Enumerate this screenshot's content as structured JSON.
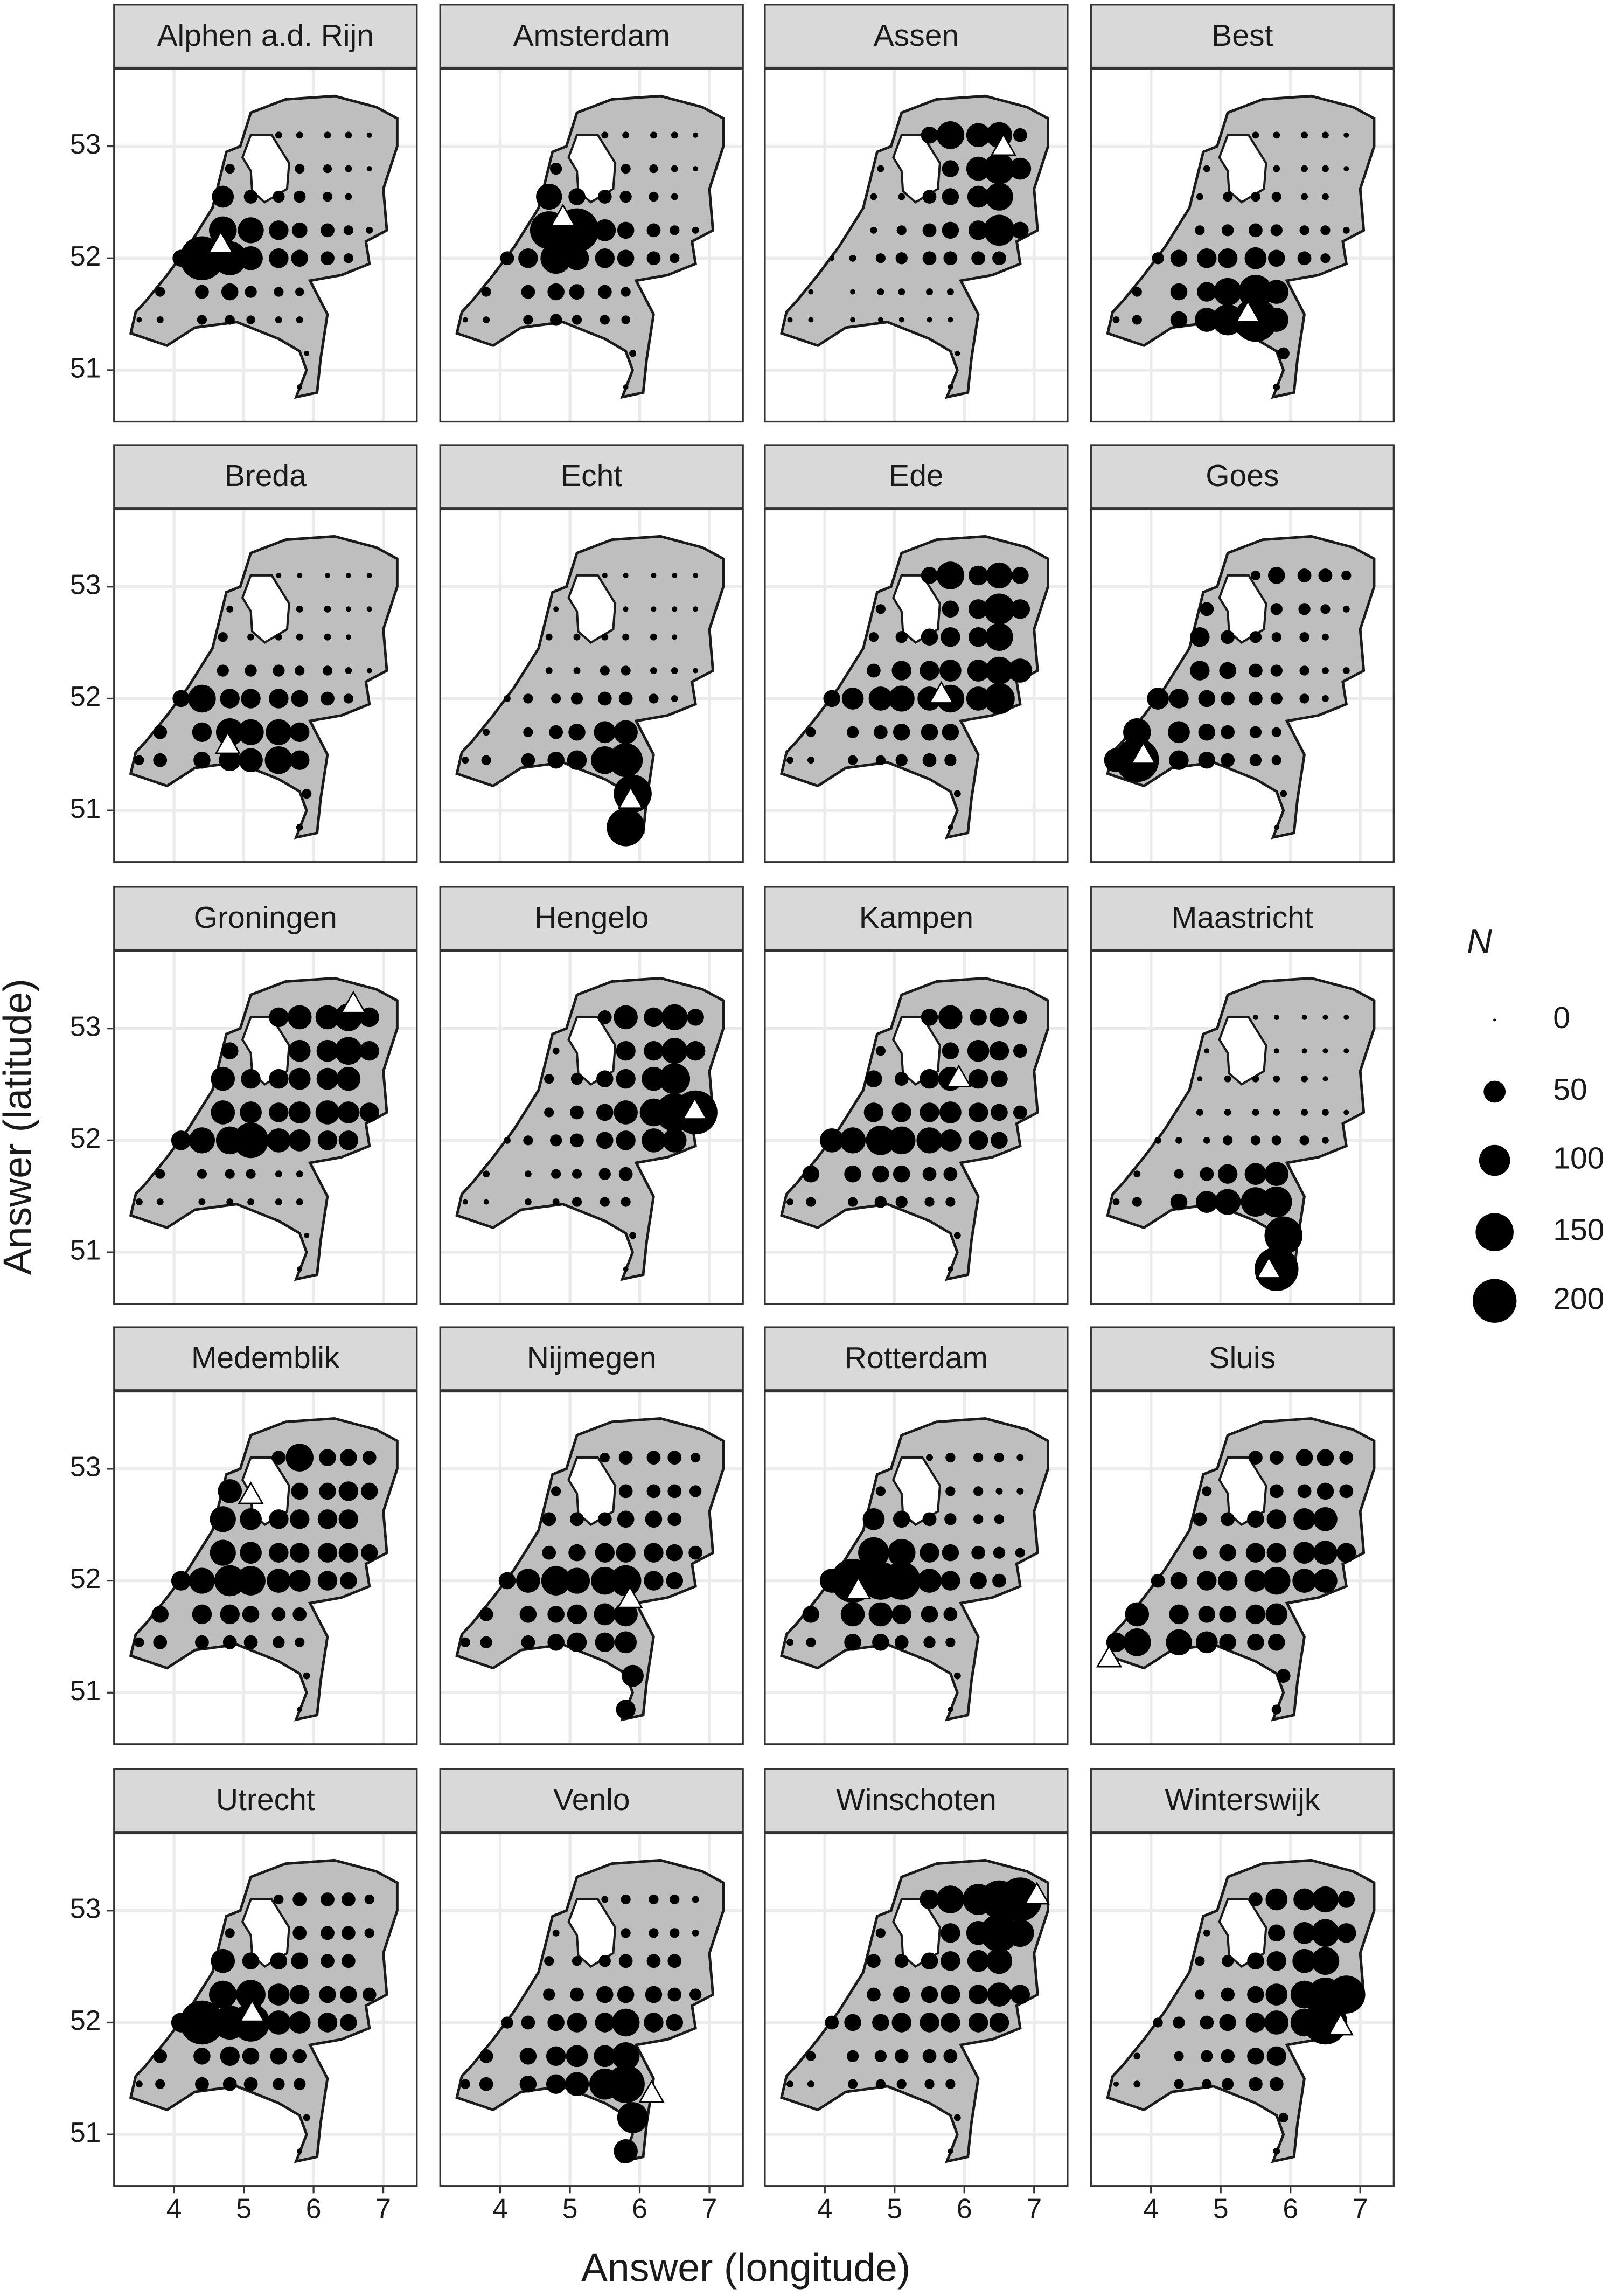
{
  "chart_data": {
    "type": "scatter",
    "x_label": "Answer (longitude)",
    "y_label": "Answer (latitude)",
    "size_legend_title": "N",
    "size_legend": [
      0,
      50,
      100,
      150,
      200
    ],
    "xlim": [
      3.14,
      7.48
    ],
    "ylim": [
      50.54,
      53.69
    ],
    "xticks": [
      4,
      5,
      6,
      7
    ],
    "yticks": [
      51,
      52,
      53
    ],
    "grid": true,
    "color": "#000000",
    "points": {
      "lon": [
        5.5,
        5.8,
        6.2,
        6.5,
        6.8,
        4.8,
        5.8,
        6.2,
        6.5,
        6.8,
        4.7,
        5.1,
        5.5,
        5.8,
        6.2,
        6.5,
        4.7,
        5.1,
        5.5,
        5.8,
        6.2,
        6.5,
        6.8,
        4.1,
        4.4,
        4.8,
        5.1,
        5.5,
        5.8,
        6.2,
        6.5,
        3.8,
        4.4,
        4.8,
        5.1,
        5.5,
        5.8,
        3.5,
        3.8,
        4.4,
        4.8,
        5.1,
        5.5,
        5.8,
        5.9,
        5.8
      ],
      "lat": [
        53.1,
        53.1,
        53.1,
        53.1,
        53.1,
        52.8,
        52.8,
        52.8,
        52.8,
        52.8,
        52.55,
        52.55,
        52.55,
        52.55,
        52.55,
        52.55,
        52.25,
        52.25,
        52.25,
        52.25,
        52.25,
        52.25,
        52.25,
        52.0,
        52.0,
        52.0,
        52.0,
        52.0,
        52.0,
        52.0,
        52.0,
        51.7,
        51.7,
        51.7,
        51.7,
        51.7,
        51.7,
        51.45,
        51.45,
        51.45,
        51.45,
        51.45,
        51.45,
        51.45,
        51.15,
        50.85
      ]
    },
    "panels": [
      {
        "title": "Alphen a.d. Rijn",
        "city_lon": 4.67,
        "city_lat": 52.13,
        "values": [
          5,
          5,
          5,
          5,
          3,
          10,
          10,
          8,
          5,
          3,
          50,
          20,
          15,
          15,
          10,
          5,
          80,
          70,
          40,
          25,
          20,
          10,
          5,
          30,
          200,
          120,
          60,
          40,
          30,
          20,
          10,
          10,
          20,
          30,
          15,
          10,
          8,
          3,
          5,
          10,
          10,
          8,
          5,
          5,
          3,
          3
        ]
      },
      {
        "title": "Amsterdam",
        "city_lon": 4.9,
        "city_lat": 52.37,
        "values": [
          5,
          5,
          5,
          5,
          3,
          15,
          10,
          8,
          5,
          3,
          70,
          30,
          20,
          15,
          10,
          5,
          150,
          200,
          50,
          30,
          20,
          10,
          5,
          20,
          40,
          100,
          60,
          40,
          30,
          20,
          10,
          10,
          20,
          30,
          25,
          20,
          10,
          3,
          5,
          10,
          15,
          10,
          10,
          8,
          5,
          3
        ]
      },
      {
        "title": "Assen",
        "city_lon": 6.56,
        "city_lat": 53.0,
        "values": [
          30,
          80,
          60,
          70,
          20,
          5,
          30,
          60,
          100,
          50,
          5,
          5,
          20,
          30,
          50,
          80,
          5,
          10,
          20,
          30,
          40,
          100,
          30,
          3,
          5,
          10,
          15,
          20,
          20,
          20,
          20,
          3,
          3,
          5,
          5,
          5,
          5,
          3,
          3,
          3,
          3,
          3,
          3,
          3,
          3,
          3
        ]
      },
      {
        "title": "Best",
        "city_lon": 5.39,
        "city_lat": 51.51,
        "values": [
          5,
          5,
          5,
          5,
          3,
          5,
          5,
          5,
          5,
          3,
          5,
          10,
          10,
          10,
          5,
          5,
          10,
          15,
          20,
          15,
          10,
          10,
          5,
          15,
          30,
          40,
          40,
          50,
          30,
          20,
          10,
          10,
          30,
          40,
          80,
          120,
          60,
          5,
          10,
          30,
          60,
          100,
          200,
          60,
          15,
          5
        ]
      },
      {
        "title": "Breda",
        "city_lon": 4.77,
        "city_lat": 51.59,
        "values": [
          3,
          3,
          3,
          3,
          3,
          5,
          5,
          5,
          3,
          3,
          10,
          5,
          5,
          5,
          5,
          3,
          15,
          15,
          15,
          10,
          10,
          5,
          3,
          30,
          80,
          40,
          40,
          40,
          30,
          20,
          10,
          20,
          40,
          80,
          70,
          70,
          40,
          10,
          20,
          30,
          50,
          60,
          80,
          40,
          10,
          5
        ]
      },
      {
        "title": "Echt",
        "city_lon": 5.87,
        "city_lat": 51.1,
        "values": [
          3,
          3,
          3,
          3,
          3,
          3,
          3,
          3,
          3,
          3,
          5,
          5,
          5,
          5,
          5,
          3,
          5,
          5,
          10,
          10,
          5,
          5,
          3,
          5,
          10,
          10,
          15,
          20,
          20,
          10,
          5,
          5,
          10,
          20,
          30,
          50,
          60,
          5,
          10,
          20,
          30,
          40,
          80,
          120,
          150,
          150
        ]
      },
      {
        "title": "Ede",
        "city_lon": 5.67,
        "city_lat": 52.04,
        "values": [
          30,
          80,
          40,
          70,
          30,
          10,
          30,
          40,
          100,
          40,
          10,
          15,
          30,
          40,
          40,
          80,
          20,
          40,
          40,
          50,
          50,
          80,
          60,
          30,
          50,
          60,
          70,
          60,
          80,
          60,
          100,
          10,
          15,
          20,
          30,
          30,
          30,
          5,
          5,
          10,
          10,
          15,
          20,
          15,
          5,
          3
        ]
      },
      {
        "title": "Goes",
        "city_lon": 3.89,
        "city_lat": 51.5,
        "values": [
          10,
          30,
          20,
          20,
          10,
          20,
          15,
          15,
          10,
          5,
          40,
          20,
          15,
          10,
          10,
          5,
          40,
          30,
          20,
          15,
          10,
          5,
          5,
          50,
          40,
          30,
          20,
          20,
          15,
          10,
          5,
          80,
          50,
          30,
          20,
          15,
          10,
          60,
          200,
          40,
          30,
          20,
          15,
          10,
          5,
          3
        ]
      },
      {
        "title": "Groningen",
        "city_lon": 6.57,
        "city_lat": 53.22,
        "values": [
          40,
          60,
          60,
          80,
          40,
          30,
          50,
          50,
          80,
          40,
          60,
          40,
          40,
          50,
          50,
          60,
          60,
          50,
          40,
          50,
          60,
          50,
          40,
          40,
          70,
          80,
          130,
          60,
          50,
          40,
          40,
          10,
          10,
          10,
          10,
          5,
          5,
          5,
          5,
          5,
          5,
          5,
          5,
          5,
          3,
          3
        ]
      },
      {
        "title": "Hengelo",
        "city_lon": 6.79,
        "city_lat": 52.27,
        "values": [
          20,
          60,
          40,
          70,
          30,
          5,
          40,
          40,
          70,
          40,
          10,
          15,
          30,
          40,
          60,
          100,
          10,
          20,
          30,
          60,
          80,
          150,
          200,
          5,
          10,
          15,
          20,
          30,
          40,
          60,
          60,
          5,
          5,
          10,
          10,
          15,
          20,
          3,
          3,
          5,
          5,
          10,
          10,
          10,
          5,
          3
        ]
      },
      {
        "title": "Kampen",
        "city_lon": 5.92,
        "city_lat": 52.56,
        "values": [
          30,
          60,
          30,
          40,
          20,
          10,
          30,
          50,
          40,
          20,
          30,
          20,
          40,
          60,
          40,
          30,
          40,
          40,
          40,
          50,
          40,
          30,
          20,
          60,
          70,
          90,
          80,
          70,
          50,
          40,
          30,
          30,
          30,
          30,
          30,
          20,
          20,
          5,
          10,
          10,
          15,
          15,
          10,
          10,
          5,
          3
        ]
      },
      {
        "title": "Maastricht",
        "city_lon": 5.69,
        "city_lat": 50.85,
        "values": [
          3,
          3,
          3,
          3,
          3,
          3,
          3,
          3,
          3,
          3,
          3,
          5,
          5,
          5,
          5,
          3,
          5,
          5,
          5,
          5,
          5,
          5,
          3,
          5,
          5,
          5,
          10,
          10,
          10,
          10,
          5,
          5,
          10,
          20,
          40,
          50,
          60,
          5,
          10,
          30,
          50,
          70,
          90,
          100,
          150,
          200
        ]
      },
      {
        "title": "Medemblik",
        "city_lon": 5.1,
        "city_lat": 52.77,
        "values": [
          20,
          80,
          30,
          30,
          20,
          60,
          30,
          30,
          40,
          30,
          70,
          50,
          40,
          40,
          40,
          40,
          70,
          50,
          40,
          40,
          40,
          40,
          30,
          40,
          70,
          100,
          90,
          60,
          50,
          40,
          30,
          30,
          40,
          40,
          30,
          20,
          20,
          10,
          20,
          20,
          20,
          20,
          15,
          10,
          5,
          3
        ]
      },
      {
        "title": "Nijmegen",
        "city_lon": 5.86,
        "city_lat": 51.84,
        "values": [
          10,
          20,
          20,
          20,
          10,
          10,
          20,
          20,
          20,
          15,
          20,
          20,
          20,
          30,
          30,
          20,
          20,
          30,
          40,
          40,
          40,
          30,
          20,
          30,
          60,
          90,
          70,
          80,
          100,
          40,
          30,
          20,
          30,
          30,
          40,
          50,
          60,
          10,
          15,
          20,
          30,
          40,
          40,
          50,
          50,
          40
        ]
      },
      {
        "title": "Rotterdam",
        "city_lon": 4.48,
        "city_lat": 51.92,
        "values": [
          5,
          10,
          10,
          10,
          5,
          10,
          10,
          10,
          5,
          5,
          50,
          30,
          20,
          15,
          10,
          10,
          100,
          80,
          40,
          30,
          20,
          15,
          10,
          60,
          200,
          150,
          150,
          60,
          40,
          30,
          20,
          30,
          60,
          60,
          40,
          30,
          20,
          5,
          10,
          30,
          30,
          20,
          15,
          10,
          5,
          3
        ]
      },
      {
        "title": "Sluis",
        "city_lon": 3.4,
        "city_lat": 51.31,
        "values": [
          20,
          20,
          30,
          30,
          20,
          10,
          20,
          20,
          30,
          20,
          20,
          20,
          30,
          40,
          50,
          60,
          20,
          30,
          40,
          40,
          50,
          60,
          40,
          20,
          30,
          40,
          40,
          50,
          80,
          60,
          60,
          60,
          40,
          30,
          30,
          40,
          50,
          40,
          80,
          70,
          50,
          30,
          30,
          30,
          20,
          10
        ]
      },
      {
        "title": "Utrecht",
        "city_lon": 5.12,
        "city_lat": 52.09,
        "values": [
          10,
          20,
          20,
          20,
          10,
          10,
          20,
          20,
          20,
          10,
          60,
          30,
          30,
          30,
          20,
          20,
          80,
          90,
          50,
          40,
          30,
          30,
          20,
          40,
          200,
          120,
          150,
          60,
          50,
          40,
          30,
          20,
          30,
          40,
          30,
          30,
          20,
          5,
          10,
          20,
          20,
          20,
          15,
          15,
          5,
          3
        ]
      },
      {
        "title": "Venlo",
        "city_lon": 6.17,
        "city_lat": 51.37,
        "values": [
          5,
          10,
          10,
          10,
          5,
          5,
          10,
          10,
          10,
          5,
          10,
          10,
          15,
          20,
          20,
          20,
          15,
          20,
          30,
          30,
          30,
          20,
          15,
          15,
          20,
          30,
          40,
          40,
          80,
          40,
          30,
          20,
          30,
          40,
          50,
          50,
          80,
          10,
          20,
          30,
          40,
          60,
          100,
          150,
          100,
          60
        ]
      },
      {
        "title": "Winschoten",
        "city_lon": 7.04,
        "city_lat": 53.14,
        "values": [
          40,
          80,
          100,
          150,
          200,
          10,
          40,
          60,
          150,
          80,
          20,
          20,
          30,
          40,
          50,
          70,
          20,
          30,
          30,
          40,
          40,
          60,
          40,
          20,
          30,
          30,
          40,
          40,
          40,
          40,
          40,
          10,
          15,
          15,
          20,
          20,
          20,
          5,
          5,
          10,
          10,
          10,
          10,
          10,
          5,
          3
        ]
      },
      {
        "title": "Winterswijk",
        "city_lon": 6.72,
        "city_lat": 51.97,
        "values": [
          20,
          50,
          50,
          70,
          30,
          5,
          30,
          50,
          80,
          40,
          10,
          15,
          30,
          40,
          60,
          80,
          10,
          20,
          30,
          50,
          80,
          120,
          150,
          10,
          15,
          20,
          30,
          40,
          60,
          80,
          200,
          5,
          10,
          15,
          20,
          30,
          40,
          3,
          5,
          10,
          10,
          15,
          20,
          20,
          10,
          5
        ]
      }
    ]
  }
}
